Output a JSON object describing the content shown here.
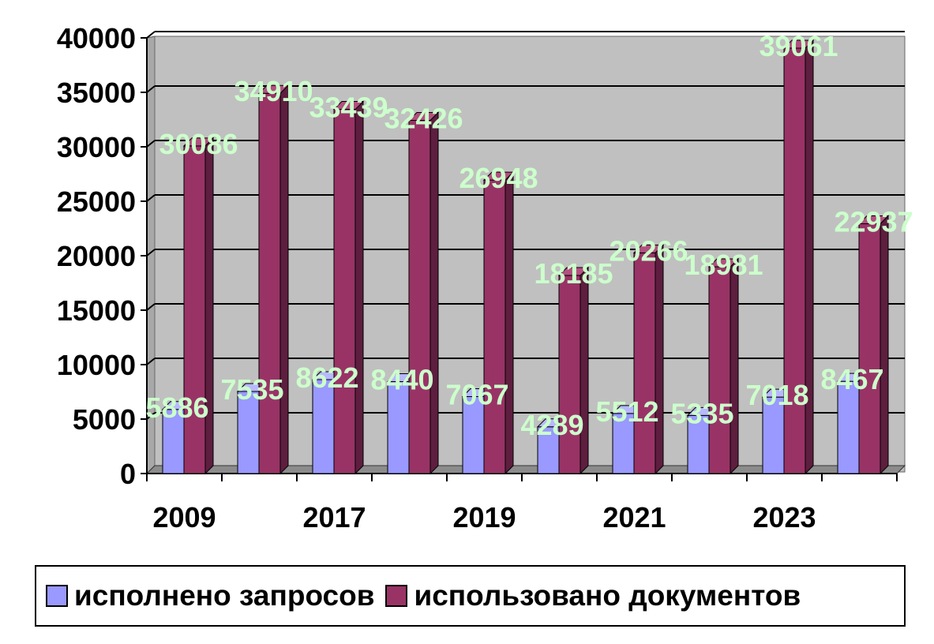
{
  "chart_data": {
    "type": "bar",
    "categories": [
      "2009",
      "",
      "2017",
      "",
      "2019",
      "",
      "2021",
      "",
      "2023",
      ""
    ],
    "series": [
      {
        "name": "исполнено запросов",
        "color": "#9999ff",
        "values": [
          5886,
          7535,
          8622,
          8440,
          7067,
          4289,
          5512,
          5335,
          7018,
          8467
        ]
      },
      {
        "name": "использовано документов",
        "color": "#993366",
        "values": [
          30086,
          34910,
          33439,
          32426,
          26948,
          18185,
          20266,
          18981,
          39061,
          22937
        ]
      }
    ],
    "title": "",
    "xlabel": "",
    "ylabel": "",
    "ylim": [
      0,
      40000
    ],
    "yticks": [
      0,
      5000,
      10000,
      15000,
      20000,
      25000,
      30000,
      35000,
      40000
    ],
    "grid": true,
    "legend_position": "bottom",
    "data_label_color": "#ccffcc",
    "plot_background": "#c0c0c0"
  }
}
